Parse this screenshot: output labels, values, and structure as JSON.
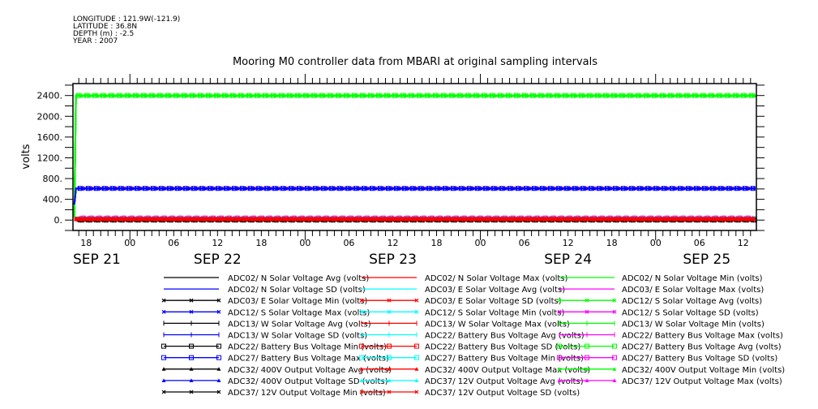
{
  "header": {
    "longitude": "LONGITUDE : 121.9W(-121.9)",
    "latitude": "LATITUDE : 36.8N",
    "depth": "DEPTH (m) : -2.5",
    "year": "YEAR : 2007"
  },
  "chart_data": {
    "type": "line",
    "title": "Mooring M0 controller data from MBARI at original sampling intervals",
    "xlabel": "",
    "ylabel": "volts",
    "xlim_hours_from_sep21": [
      16.2,
      109.8
    ],
    "data_start_hours_from_sep21": 16.5,
    "ylim": [
      -200,
      2630
    ],
    "yticks": [
      0,
      400,
      800,
      1200,
      1600,
      2000,
      2400
    ],
    "ytick_labels": [
      "0.",
      "400.",
      "800.",
      "1200.",
      "1600.",
      "2000.",
      "2400."
    ],
    "xtick_hours": [
      18,
      24,
      30,
      36,
      42,
      48,
      54,
      60,
      66,
      72,
      78,
      84,
      90,
      96,
      102,
      108
    ],
    "xtick_labels": [
      "18",
      "00",
      "06",
      "12",
      "18",
      "00",
      "06",
      "12",
      "18",
      "00",
      "06",
      "12",
      "18",
      "00",
      "06",
      "12"
    ],
    "date_labels": [
      {
        "hour": 16.2,
        "label": "SEP 21"
      },
      {
        "hour": 36,
        "label": "SEP 22"
      },
      {
        "hour": 60,
        "label": "SEP 23"
      },
      {
        "hour": 84,
        "label": "SEP 24"
      },
      {
        "hour": 103,
        "label": "SEP 25"
      }
    ],
    "grid": false,
    "legend_position": "bottom",
    "series": [
      {
        "name": "ADC02/ N Solar Voltage Avg (volts)",
        "color": "#000000",
        "marker": "none",
        "level": 0
      },
      {
        "name": "ADC02/ N Solar Voltage Max (volts)",
        "color": "#ff0000",
        "marker": "none",
        "level": 20
      },
      {
        "name": "ADC02/ N Solar Voltage Min (volts)",
        "color": "#00ff00",
        "marker": "none",
        "level": 2400
      },
      {
        "name": "ADC02/ N Solar Voltage SD (volts)",
        "color": "#0000ff",
        "marker": "none",
        "level": 610
      },
      {
        "name": "ADC03/ E Solar Voltage Avg (volts)",
        "color": "#00ffff",
        "marker": "none",
        "level": 55
      },
      {
        "name": "ADC03/ E Solar Voltage Max (volts)",
        "color": "#ff00ff",
        "marker": "none",
        "level": 40
      },
      {
        "name": "ADC03/ E Solar Voltage Min (volts)",
        "color": "#000000",
        "marker": "x",
        "level": 0
      },
      {
        "name": "ADC03/ E Solar Voltage SD (volts)",
        "color": "#ff0000",
        "marker": "x",
        "level": 610
      },
      {
        "name": "ADC12/ S Solar Voltage Avg (volts)",
        "color": "#00ff00",
        "marker": "x",
        "level": 2400
      },
      {
        "name": "ADC12/ S Solar Voltage Max (volts)",
        "color": "#0000ff",
        "marker": "x",
        "level": 610
      },
      {
        "name": "ADC12/ S Solar Voltage Min (volts)",
        "color": "#00ffff",
        "marker": "x",
        "level": 30
      },
      {
        "name": "ADC12/ S Solar Voltage SD (volts)",
        "color": "#ff00ff",
        "marker": "x",
        "level": 35
      },
      {
        "name": "ADC13/ W Solar Voltage Avg (volts)",
        "color": "#000000",
        "marker": "plus",
        "level": 0
      },
      {
        "name": "ADC13/ W Solar Voltage Max (volts)",
        "color": "#ff0000",
        "marker": "plus",
        "level": 15
      },
      {
        "name": "ADC13/ W Solar Voltage Min (volts)",
        "color": "#00ff00",
        "marker": "plus",
        "level": 2400
      },
      {
        "name": "ADC13/ W Solar Voltage SD (volts)",
        "color": "#0000ff",
        "marker": "plus",
        "level": 610
      },
      {
        "name": "ADC22/ Battery Bus Voltage Avg (volts)",
        "color": "#00ffff",
        "marker": "plus",
        "level": 30
      },
      {
        "name": "ADC22/ Battery Bus Voltage Max (volts)",
        "color": "#ff00ff",
        "marker": "plus",
        "level": 35
      },
      {
        "name": "ADC22/ Battery Bus Voltage Min (volts)",
        "color": "#000000",
        "marker": "square",
        "level": 0
      },
      {
        "name": "ADC22/ Battery Bus Voltage SD (volts)",
        "color": "#ff0000",
        "marker": "square",
        "level": 20
      },
      {
        "name": "ADC27/ Battery Bus Voltage Avg (volts)",
        "color": "#00ff00",
        "marker": "square",
        "level": 2400
      },
      {
        "name": "ADC27/ Battery Bus Voltage Max (volts)",
        "color": "#0000ff",
        "marker": "square",
        "level": 610
      },
      {
        "name": "ADC27/ Battery Bus Voltage Min (volts)",
        "color": "#00ffff",
        "marker": "square",
        "level": 30
      },
      {
        "name": "ADC27/ Battery Bus Voltage SD (volts)",
        "color": "#ff00ff",
        "marker": "square",
        "level": 40
      },
      {
        "name": "ADC32/ 400V Output Voltage Avg (volts)",
        "color": "#000000",
        "marker": "triangle",
        "level": 0
      },
      {
        "name": "ADC32/ 400V Output Voltage Max (volts)",
        "color": "#ff0000",
        "marker": "triangle",
        "level": 25
      },
      {
        "name": "ADC32/ 400V Output Voltage Min (volts)",
        "color": "#00ff00",
        "marker": "triangle",
        "level": 2400
      },
      {
        "name": "ADC32/ 400V Output Voltage SD (volts)",
        "color": "#0000ff",
        "marker": "triangle",
        "level": 610
      },
      {
        "name": "ADC37/ 12V Output Voltage Avg (volts)",
        "color": "#00ffff",
        "marker": "triangle",
        "level": 30
      },
      {
        "name": "ADC37/ 12V Output Voltage Max (volts)",
        "color": "#ff00ff",
        "marker": "triangle",
        "level": 40
      },
      {
        "name": "ADC37/ 12V Output Voltage Min (volts)",
        "color": "#000000",
        "marker": "x",
        "level": 0
      },
      {
        "name": "ADC37/ 12V Output Voltage SD (volts)",
        "color": "#ff0000",
        "marker": "x",
        "level": 20
      }
    ]
  }
}
